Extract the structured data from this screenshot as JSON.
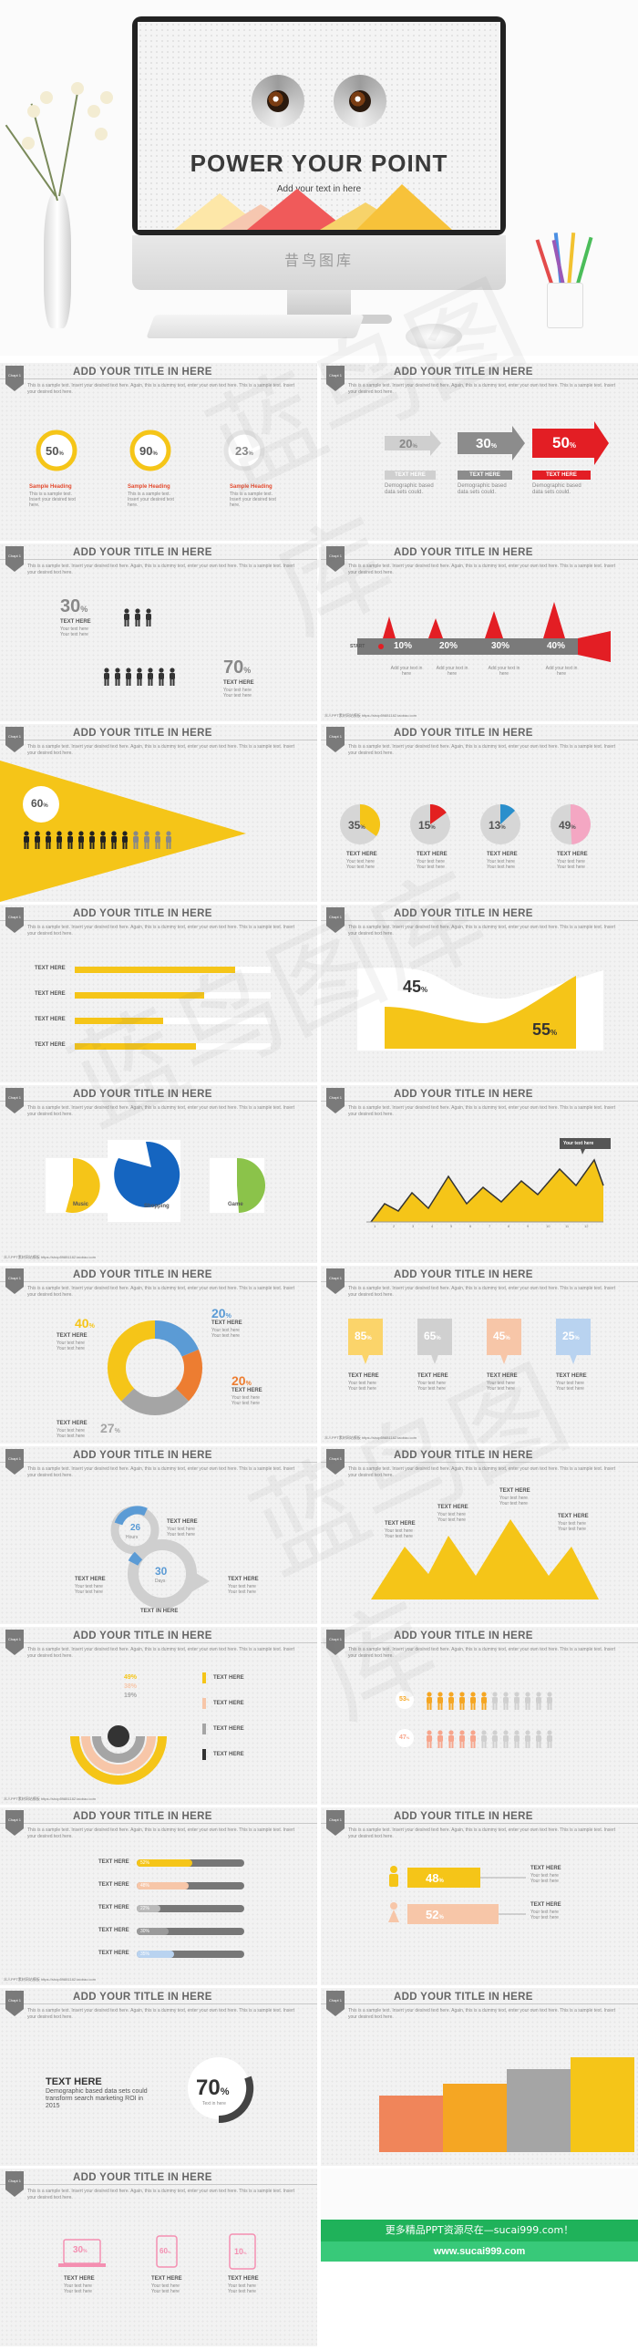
{
  "hero": {
    "title": "POWER YOUR POINT",
    "subtitle": "Add your text in here",
    "brand": "昔鸟图库"
  },
  "common": {
    "slide_title": "ADD YOUR TITLE IN HERE",
    "tab": "Chapt 1",
    "desc": "This is a sample text. Insert your desired text here. Again, this is a dummy text, enter your own text here. This is a sample text. Insert your desired text here.",
    "url": "众人PPT素材网站模板 https://shop59881182.taobao.com"
  },
  "s1": {
    "items": [
      {
        "value": "50",
        "unit": "%",
        "heading": "Sample Heading",
        "text": "This is a sample text. Insert your desired text here."
      },
      {
        "value": "90",
        "unit": "%",
        "heading": "Sample Heading",
        "text": "This is a sample text. Insert your desired text here."
      },
      {
        "value": "23",
        "unit": "%",
        "heading": "Sample Heading",
        "text": "This is a sample text. Insert your desired text here."
      }
    ]
  },
  "s2": {
    "arrows": [
      {
        "value": "20",
        "unit": "%",
        "label": "TEXT HERE",
        "text": "Demographic based data sets could."
      },
      {
        "value": "30",
        "unit": "%",
        "label": "TEXT HERE",
        "text": "Demographic based data sets could."
      },
      {
        "value": "50",
        "unit": "%",
        "label": "TEXT HERE",
        "text": "Demographic based data sets could."
      }
    ]
  },
  "s3": {
    "top": {
      "value": "30",
      "unit": "%",
      "label": "TEXT HERE",
      "text": "Your text here Your text here"
    },
    "bottom": {
      "value": "70",
      "unit": "%",
      "label": "TEXT HERE",
      "text": "Your text here Your text here"
    }
  },
  "s4": {
    "start": "START",
    "values": [
      "10%",
      "20%",
      "30%",
      "40%"
    ],
    "captions": [
      "Add your text in here",
      "Add your text in here",
      "Add your text in here",
      "Add your text in here"
    ]
  },
  "s5": {
    "value": "60",
    "unit": "%"
  },
  "s6": {
    "pies": [
      {
        "value": "35",
        "unit": "%",
        "fraction": 0.35,
        "color": "#f5c518",
        "label": "TEXT HERE",
        "text": "Your text here Your text here"
      },
      {
        "value": "15",
        "unit": "%",
        "fraction": 0.15,
        "color": "#e32020",
        "label": "TEXT HERE",
        "text": "Your text here Your text here"
      },
      {
        "value": "13",
        "unit": "%",
        "fraction": 0.13,
        "color": "#2a8fcc",
        "label": "TEXT HERE",
        "text": "Your text here Your text here"
      },
      {
        "value": "49",
        "unit": "%",
        "fraction": 0.49,
        "color": "#f4a7c3",
        "label": "TEXT HERE",
        "text": "Your text here Your text here"
      }
    ]
  },
  "s7": {
    "bars": [
      {
        "label": "TEXT HERE",
        "fraction": 0.82
      },
      {
        "label": "TEXT HERE",
        "fraction": 0.66
      },
      {
        "label": "TEXT HERE",
        "fraction": 0.45
      },
      {
        "label": "TEXT HERE",
        "fraction": 0.62
      }
    ]
  },
  "s8": {
    "left": {
      "value": "45",
      "unit": "%"
    },
    "right": {
      "value": "55",
      "unit": "%"
    }
  },
  "s9": {
    "labels": [
      "Music",
      "Shopping",
      "Game"
    ]
  },
  "s10": {
    "tooltip": "Your text here",
    "x_ticks": [
      "1",
      "2",
      "3",
      "4",
      "5",
      "6",
      "7",
      "8",
      "9",
      "10",
      "11",
      "12"
    ]
  },
  "s11": {
    "items": [
      {
        "value": "40",
        "unit": "%",
        "label": "TEXT HERE",
        "text": "Your text here Your text here",
        "color": "#f5c518"
      },
      {
        "value": "20",
        "unit": "%",
        "label": "TEXT HERE",
        "text": "Your text here Your text here",
        "color": "#5b9bd5"
      },
      {
        "value": "20",
        "unit": "%",
        "label": "TEXT HERE",
        "text": "Your text here Your text here",
        "color": "#ed7d31"
      },
      {
        "value": "27",
        "unit": "%",
        "label": "TEXT HERE",
        "text": "Your text here Your text here",
        "color": "#a5a5a5"
      }
    ]
  },
  "s12": {
    "tags": [
      {
        "value": "85",
        "unit": "%",
        "color": "#fbd46a",
        "label": "TEXT HERE",
        "text": "Your text here Your text here"
      },
      {
        "value": "65",
        "unit": "%",
        "color": "#d0d0d0",
        "label": "TEXT HERE",
        "text": "Your text here Your text here"
      },
      {
        "value": "45",
        "unit": "%",
        "color": "#f7c6a8",
        "label": "TEXT HERE",
        "text": "Your text here Your text here"
      },
      {
        "value": "25",
        "unit": "%",
        "color": "#b9d3f0",
        "label": "TEXT HERE",
        "text": "Your text here Your text here"
      }
    ]
  },
  "s13": {
    "small": {
      "value": "26",
      "unit": "Hours"
    },
    "big": {
      "value": "30",
      "unit": "Days"
    },
    "labels": [
      "TEXT HERE",
      "TEXT HERE",
      "TEXT HERE",
      "TEXT IN HERE"
    ],
    "text": "Your text here Your text here"
  },
  "s14": {
    "labels": [
      "TEXT HERE",
      "TEXT HERE",
      "TEXT HERE",
      "TEXT HERE"
    ],
    "text": "Your text here Your text here"
  },
  "s15": {
    "values": [
      "49%",
      "38%",
      "19%"
    ],
    "legend": [
      "TEXT HERE",
      "TEXT HERE",
      "TEXT HERE",
      "TEXT HERE"
    ],
    "legend_colors": [
      "#f5c518",
      "#f7c6a8",
      "#a5a5a5",
      "#333333"
    ]
  },
  "s16": {
    "rows": [
      {
        "value": "53",
        "unit": "%",
        "filled": 6
      },
      {
        "value": "47",
        "unit": "%",
        "filled": 5
      }
    ],
    "total": 12
  },
  "s17": {
    "rows": [
      {
        "label": "TEXT HERE",
        "value": "52%",
        "fraction": 0.52,
        "color": "#f5c518"
      },
      {
        "label": "TEXT HERE",
        "value": "48%",
        "fraction": 0.48,
        "color": "#f7c6a8"
      },
      {
        "label": "TEXT HERE",
        "value": "22%",
        "fraction": 0.22,
        "color": "#b9b9b9"
      },
      {
        "label": "TEXT HERE",
        "value": "30%",
        "fraction": 0.3,
        "color": "#9a9a9a"
      },
      {
        "label": "TEXT HERE",
        "value": "35%",
        "fraction": 0.35,
        "color": "#b9d3f0"
      }
    ]
  },
  "s18": {
    "rows": [
      {
        "value": "48",
        "unit": "%",
        "color": "#f5c518",
        "label": "TEXT HERE",
        "text": "Your text here Your text here"
      },
      {
        "value": "52",
        "unit": "%",
        "color": "#f7c6a8",
        "label": "TEXT HERE",
        "text": "Your text here Your text here"
      }
    ]
  },
  "s19": {
    "heading": "TEXT HERE",
    "text": "Demographic based data sets could transform search marketing ROI in 2015",
    "value": "70",
    "unit": "%",
    "sub": "Text in here"
  },
  "s20": {
    "bars": [
      {
        "fraction": 0.48,
        "color": "#f0855a"
      },
      {
        "fraction": 0.58,
        "color": "#f5a623"
      },
      {
        "fraction": 0.7,
        "color": "#a5a5a5"
      },
      {
        "fraction": 0.8,
        "color": "#f5c518"
      }
    ]
  },
  "s21": {
    "items": [
      {
        "value": "30",
        "unit": "%",
        "label": "TEXT HERE",
        "text": "Your text here Your text here"
      },
      {
        "value": "60",
        "unit": "%",
        "label": "TEXT HERE",
        "text": "Your text here Your text here"
      },
      {
        "value": "10",
        "unit": "%",
        "label": "TEXT HERE",
        "text": "Your text here Your text here"
      }
    ]
  },
  "promo": {
    "line1": "更多精品PPT资源尽在—sucai999.com！",
    "line2": "www.sucai999.com"
  }
}
